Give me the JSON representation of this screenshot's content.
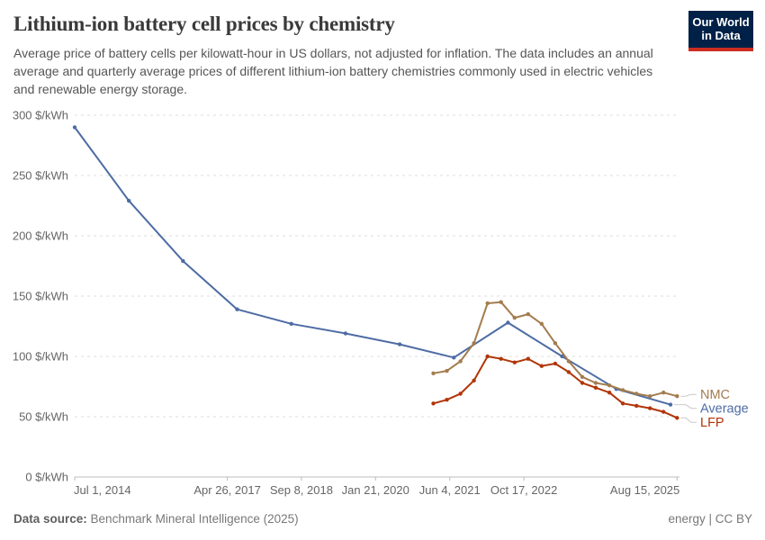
{
  "header": {
    "title": "Lithium-ion battery cell prices by chemistry",
    "subtitle": "Average price of battery cells per kilowatt-hour in US dollars, not adjusted for inflation. The data includes an annual average and quarterly average prices of different lithium-ion battery chemistries commonly used in electric vehicles and renewable energy storage.",
    "logo": {
      "line1": "Our World",
      "line2": "in Data",
      "bg": "#002147",
      "stripe": "#cb2d21"
    }
  },
  "footer": {
    "source_label": "Data source:",
    "source_value": "Benchmark Mineral Intelligence (2025)",
    "rights": "energy | CC BY"
  },
  "colors": {
    "grid": "#dedede",
    "axis": "#bcbcbc",
    "axis_text": "#666666",
    "connector": "#c9c9c9"
  },
  "chart_data": {
    "type": "line",
    "title": "Lithium-ion battery cell prices by chemistry",
    "xlabel": "",
    "ylabel": "$/kWh",
    "unit_suffix": " $/kWh",
    "ylim": [
      0,
      300
    ],
    "y_ticks": [
      0,
      50,
      100,
      150,
      200,
      250,
      300
    ],
    "xlim": [
      "2014-07-01",
      "2025-09-01"
    ],
    "x_ticks": [
      {
        "label": "Jul 1, 2014",
        "date": "2014-07-01"
      },
      {
        "label": "Apr 26, 2017",
        "date": "2017-04-26"
      },
      {
        "label": "Sep 8, 2018",
        "date": "2018-09-08"
      },
      {
        "label": "Jan 21, 2020",
        "date": "2020-01-21"
      },
      {
        "label": "Jun 4, 2021",
        "date": "2021-06-04"
      },
      {
        "label": "Oct 17, 2022",
        "date": "2022-10-17"
      },
      {
        "label": "Aug 15, 2025",
        "date": "2025-08-15"
      }
    ],
    "grid": "dashed-horizontal",
    "legend_position": "right-end-labels",
    "series": [
      {
        "name": "Average",
        "color": "#4e6ca4",
        "cadence": "annual",
        "points": [
          {
            "date": "2014-07-01",
            "value": 290
          },
          {
            "date": "2015-07-01",
            "value": 229
          },
          {
            "date": "2016-07-01",
            "value": 179
          },
          {
            "date": "2017-07-01",
            "value": 139
          },
          {
            "date": "2018-07-01",
            "value": 127
          },
          {
            "date": "2019-07-01",
            "value": 119
          },
          {
            "date": "2020-07-01",
            "value": 110
          },
          {
            "date": "2021-07-01",
            "value": 99
          },
          {
            "date": "2022-07-01",
            "value": 128
          },
          {
            "date": "2023-07-01",
            "value": 100
          },
          {
            "date": "2024-07-01",
            "value": 73
          },
          {
            "date": "2025-07-01",
            "value": 60
          }
        ]
      },
      {
        "name": "NMC",
        "color": "#a37c4e",
        "cadence": "quarterly",
        "points": [
          {
            "date": "2021-02-15",
            "value": 86
          },
          {
            "date": "2021-05-15",
            "value": 88
          },
          {
            "date": "2021-08-15",
            "value": 96
          },
          {
            "date": "2021-11-15",
            "value": 111
          },
          {
            "date": "2022-02-15",
            "value": 144
          },
          {
            "date": "2022-05-15",
            "value": 145
          },
          {
            "date": "2022-08-15",
            "value": 132
          },
          {
            "date": "2022-11-15",
            "value": 135
          },
          {
            "date": "2023-02-15",
            "value": 127
          },
          {
            "date": "2023-05-15",
            "value": 111
          },
          {
            "date": "2023-08-15",
            "value": 96
          },
          {
            "date": "2023-11-15",
            "value": 83
          },
          {
            "date": "2024-02-15",
            "value": 78
          },
          {
            "date": "2024-05-15",
            "value": 76
          },
          {
            "date": "2024-08-15",
            "value": 72
          },
          {
            "date": "2024-11-15",
            "value": 69
          },
          {
            "date": "2025-02-15",
            "value": 67
          },
          {
            "date": "2025-05-15",
            "value": 70
          },
          {
            "date": "2025-08-15",
            "value": 67
          }
        ]
      },
      {
        "name": "LFP",
        "color": "#b13507",
        "cadence": "quarterly",
        "points": [
          {
            "date": "2021-02-15",
            "value": 61
          },
          {
            "date": "2021-05-15",
            "value": 64
          },
          {
            "date": "2021-08-15",
            "value": 69
          },
          {
            "date": "2021-11-15",
            "value": 80
          },
          {
            "date": "2022-02-15",
            "value": 100
          },
          {
            "date": "2022-05-15",
            "value": 98
          },
          {
            "date": "2022-08-15",
            "value": 95
          },
          {
            "date": "2022-11-15",
            "value": 98
          },
          {
            "date": "2023-02-15",
            "value": 92
          },
          {
            "date": "2023-05-15",
            "value": 94
          },
          {
            "date": "2023-08-15",
            "value": 87
          },
          {
            "date": "2023-11-15",
            "value": 78
          },
          {
            "date": "2024-02-15",
            "value": 74
          },
          {
            "date": "2024-05-15",
            "value": 70
          },
          {
            "date": "2024-08-15",
            "value": 61
          },
          {
            "date": "2024-11-15",
            "value": 59
          },
          {
            "date": "2025-02-15",
            "value": 57
          },
          {
            "date": "2025-05-15",
            "value": 54
          },
          {
            "date": "2025-08-15",
            "value": 49
          }
        ]
      }
    ]
  }
}
